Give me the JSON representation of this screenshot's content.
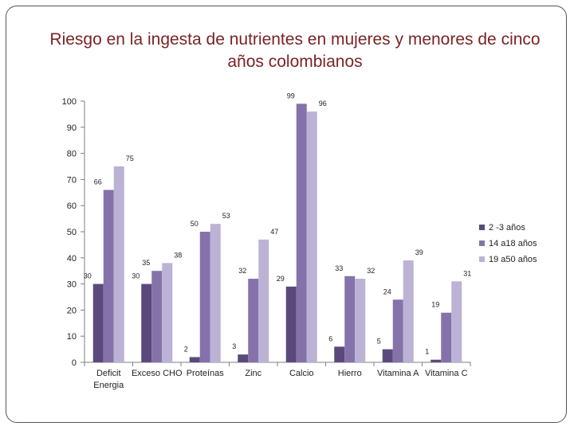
{
  "chart_data": {
    "type": "bar",
    "title": "Riesgo en la ingesta de nutrientes en mujeres y menores de cinco años colombianos",
    "categories": [
      "Deficit Energia",
      "Exceso CHO",
      "Proteínas",
      "Zinc",
      "Calcio",
      "Hierro",
      "Vitamina A",
      "Vitamina C"
    ],
    "category_lines": [
      [
        "Deficit",
        "Energia"
      ],
      [
        "Exceso CHO"
      ],
      [
        "Proteínas"
      ],
      [
        "Zinc"
      ],
      [
        "Calcio"
      ],
      [
        "Hierro"
      ],
      [
        "Vitamina A"
      ],
      [
        "Vitamina C"
      ]
    ],
    "series": [
      {
        "name": "2 -3 años",
        "color": "#5a4a7c",
        "values": [
          30,
          30,
          2,
          3,
          29,
          6,
          5,
          1
        ]
      },
      {
        "name": "14 a18 años",
        "color": "#8672ab",
        "values": [
          66,
          35,
          50,
          32,
          99,
          33,
          24,
          19
        ]
      },
      {
        "name": "19 a50 años",
        "color": "#bcb2d6",
        "values": [
          75,
          38,
          53,
          47,
          96,
          32,
          39,
          31
        ]
      }
    ],
    "ylim": [
      0,
      100
    ],
    "yticks": [
      0,
      10,
      20,
      30,
      40,
      50,
      60,
      70,
      80,
      90,
      100
    ],
    "xlabel": "",
    "ylabel": "",
    "grid": false,
    "legend_position": "right"
  }
}
